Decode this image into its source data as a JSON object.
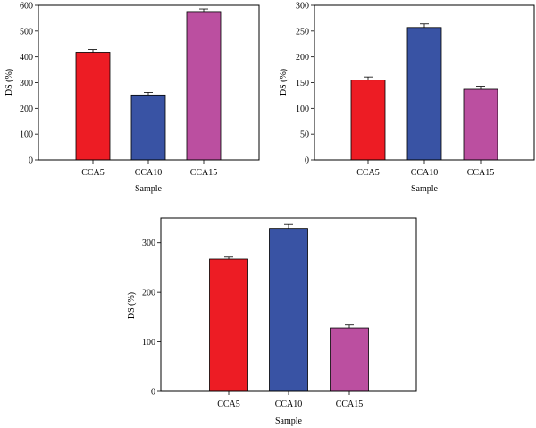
{
  "chart_data": [
    {
      "type": "bar",
      "title": "",
      "xlabel": "Sample",
      "ylabel": "DS (%)",
      "categories": [
        "CCA5",
        "CCA10",
        "CCA15"
      ],
      "values": [
        418,
        252,
        576
      ],
      "errors": [
        10,
        10,
        10
      ],
      "colors": [
        "#ed1c24",
        "#3953a4",
        "#bb4fa0"
      ],
      "ylim": [
        0,
        600
      ],
      "yticks": [
        0,
        100,
        200,
        300,
        400,
        500,
        600
      ],
      "grid": false
    },
    {
      "type": "bar",
      "title": "",
      "xlabel": "Sample",
      "ylabel": "DS (%)",
      "categories": [
        "CCA5",
        "CCA10",
        "CCA15"
      ],
      "values": [
        155,
        257,
        137
      ],
      "errors": [
        6,
        7,
        6
      ],
      "colors": [
        "#ed1c24",
        "#3953a4",
        "#bb4fa0"
      ],
      "ylim": [
        0,
        300
      ],
      "yticks": [
        0,
        50,
        100,
        150,
        200,
        250,
        300
      ],
      "grid": false
    },
    {
      "type": "bar",
      "title": "",
      "xlabel": "Sample",
      "ylabel": "DS (%)",
      "categories": [
        "CCA5",
        "CCA10",
        "CCA15"
      ],
      "values": [
        267,
        329,
        128
      ],
      "errors": [
        4,
        8,
        6
      ],
      "colors": [
        "#ed1c24",
        "#3953a4",
        "#bb4fa0"
      ],
      "ylim": [
        0,
        350
      ],
      "yticks": [
        0,
        100,
        200,
        300
      ],
      "grid": false
    }
  ]
}
